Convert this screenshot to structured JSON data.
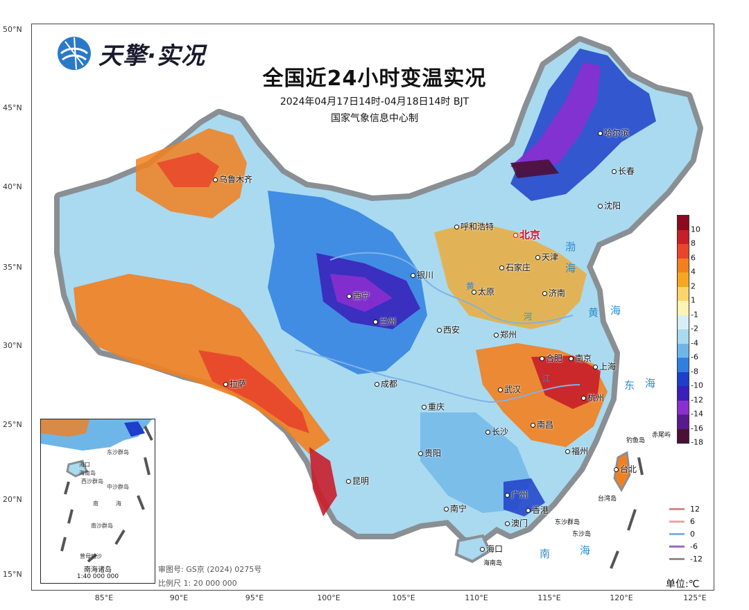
{
  "logo": {
    "text": "天擎·实况",
    "icon": "globe-icon"
  },
  "title": {
    "main": "全国近24小时变温实况",
    "period": "2024年04月17日14时-04月18日14时 BJT",
    "maker": "国家气象信息中心制"
  },
  "lat_ticks": [
    "50°N",
    "45°N",
    "40°N",
    "35°N",
    "30°N",
    "25°N",
    "20°N",
    "15°N"
  ],
  "lon_ticks": [
    "85°E",
    "90°E",
    "95°E",
    "100°E",
    "105°E",
    "110°E",
    "115°E",
    "120°E",
    "125°E"
  ],
  "cities": {
    "urumqi": "乌鲁木齐",
    "harbin": "哈尔滨",
    "changchun": "长春",
    "shenyang": "沈阳",
    "hohhot": "呼和浩特",
    "beijing": "北京",
    "tianjin": "天津",
    "shijiazhuang": "石家庄",
    "yinchuan": "银川",
    "taiyuan": "太原",
    "jinan": "济南",
    "xining": "西宁",
    "lanzhou": "兰州",
    "xian": "西安",
    "zhengzhou": "郑州",
    "hefei": "合肥",
    "nanjing": "南京",
    "shanghai": "上海",
    "lhasa": "拉萨",
    "chengdu": "成都",
    "wuhan": "武汉",
    "hangzhou": "杭州",
    "chongqing": "重庆",
    "nanchang": "南昌",
    "changsha": "长沙",
    "guiyang": "贵阳",
    "fuzhou": "福州",
    "taipei": "台北",
    "kunming": "昆明",
    "guangzhou": "广州",
    "hongkong": "香港",
    "macau": "澳门",
    "nanning": "南宁",
    "haikou": "海口"
  },
  "rivers": {
    "huanghe": "黄",
    "he": "河",
    "changjiang": "江"
  },
  "seas": {
    "bohai": "渤",
    "bohai2": "海",
    "huanghai": "黄",
    "huanghai2": "海",
    "donghai": "东",
    "donghai2": "海",
    "nanhai": "南",
    "nanhai2": "海"
  },
  "islands": {
    "taiwan_island": "台湾岛",
    "diaoyu": "钓鱼岛",
    "chiwei": "赤尾屿",
    "dongsha": "东沙群岛",
    "dongsha2": "东沙岛",
    "hainan_island": "海南岛"
  },
  "inset": {
    "title": "南海诸岛",
    "scale": "1:40 000 000",
    "labels": [
      "东沙群岛",
      "海口",
      "海南岛",
      "西沙群岛",
      "中沙群岛",
      "南",
      "海",
      "南沙群岛",
      "曾母暗沙"
    ]
  },
  "review": {
    "code": "审图号: GS京 (2024) 0275号",
    "scale": "比例尺 1: 20 000 000"
  },
  "unit": "单位:℃",
  "legend": {
    "labels": [
      "10",
      "8",
      "6",
      "4",
      "2",
      "1",
      "-1",
      "-2",
      "-4",
      "-6",
      "-8",
      "-10",
      "-12",
      "-14",
      "-16",
      "-18"
    ],
    "colors": [
      "#8b0a1e",
      "#c81e2a",
      "#e8452b",
      "#f2801f",
      "#f5a623",
      "#fbd56a",
      "#fdf3b3",
      "#d8eef6",
      "#a9daf0",
      "#6fb6e8",
      "#2f7fe0",
      "#1e3fc9",
      "#3a1fb8",
      "#8b2fd0",
      "#5a1a8f",
      "#4a1036"
    ]
  },
  "line_legend": [
    {
      "label": "12",
      "color": "#d9868b"
    },
    {
      "label": "6",
      "color": "#eea4a6"
    },
    {
      "label": "0",
      "color": "#7fb2e8"
    },
    {
      "label": "-6",
      "color": "#9b6bc8"
    },
    {
      "label": "-12",
      "color": "#9a8a8a"
    }
  ]
}
